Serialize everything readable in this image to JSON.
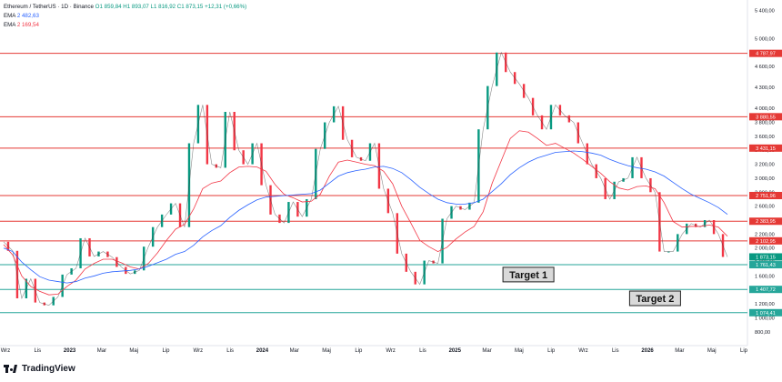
{
  "legend": {
    "symbol": "Ethereum / TetherUS · 1D · Binance",
    "ohlc": "O1 859,84  H1 893,07  L1 816,92  C1 873,15  +12,31 (+0,66%)",
    "ema1_label": "EMA",
    "ema1_value": "2 482,63",
    "ema2_label": "EMA",
    "ema2_value": "2 169,54"
  },
  "brand": {
    "name": "TradingView"
  },
  "colors": {
    "up": "#089981",
    "down": "#f23645",
    "ema_slow": "#2962ff",
    "ema_fast": "#f23645",
    "resistance": "#e53935",
    "support": "#26a69a"
  },
  "chart_data": {
    "type": "line",
    "series": [
      {
        "values": [
          2090,
          1960,
          1280,
          1560,
          1220,
          1180,
          1300,
          1620,
          1710,
          2140,
          1880,
          1950,
          1870,
          1730,
          1630,
          1680,
          2020,
          2300,
          2480,
          2640,
          2300,
          3500,
          4050,
          3200,
          3150,
          3950,
          3400,
          3200,
          3500,
          2900,
          2480,
          2360,
          2660,
          2450,
          2700,
          3420,
          3800,
          4030,
          3550,
          3300,
          3250,
          3500,
          2850,
          2500,
          1920,
          1660,
          1480,
          1820,
          1780,
          2420,
          2600,
          2550,
          2650,
          3700,
          4320,
          4800,
          4520,
          4350,
          4150,
          3900,
          3700,
          4050,
          3900,
          3800,
          3500,
          3200,
          3000,
          2700,
          2950,
          3000,
          3300,
          3000,
          2800,
          1950,
          1950,
          2200,
          2350,
          2300,
          2400,
          2200,
          1873
        ]
      },
      {
        "values": [
          2050,
          1900,
          1600,
          1450,
          1380,
          1330,
          1340,
          1450,
          1540,
          1700,
          1780,
          1840,
          1840,
          1790,
          1730,
          1700,
          1780,
          1930,
          2110,
          2270,
          2340,
          2560,
          2850,
          2930,
          2960,
          3080,
          3160,
          3170,
          3160,
          3100,
          2910,
          2770,
          2720,
          2660,
          2670,
          2770,
          3030,
          3230,
          3260,
          3230,
          3200,
          3180,
          3100,
          2920,
          2600,
          2360,
          2110,
          2020,
          1950,
          2010,
          2130,
          2230,
          2310,
          2520,
          2930,
          3250,
          3570,
          3680,
          3660,
          3570,
          3470,
          3500,
          3430,
          3360,
          3270,
          3170,
          3070,
          2950,
          2860,
          2830,
          2880,
          2890,
          2850,
          2650,
          2380,
          2300,
          2310,
          2310,
          2330,
          2300,
          2170
        ]
      },
      {
        "values": [
          2000,
          1950,
          1800,
          1690,
          1590,
          1540,
          1520,
          1500,
          1520,
          1570,
          1600,
          1640,
          1660,
          1670,
          1680,
          1700,
          1740,
          1790,
          1840,
          1910,
          1950,
          2040,
          2160,
          2250,
          2320,
          2440,
          2540,
          2620,
          2690,
          2730,
          2740,
          2750,
          2760,
          2770,
          2780,
          2830,
          2930,
          3030,
          3080,
          3110,
          3130,
          3160,
          3170,
          3140,
          3080,
          2980,
          2870,
          2780,
          2700,
          2650,
          2630,
          2630,
          2650,
          2700,
          2810,
          2920,
          3050,
          3150,
          3230,
          3290,
          3330,
          3370,
          3380,
          3390,
          3380,
          3360,
          3330,
          3270,
          3220,
          3180,
          3150,
          3130,
          3090,
          3030,
          2940,
          2850,
          2770,
          2710,
          2650,
          2580,
          2482
        ]
      }
    ],
    "y_ticks": [
      "5 400,00",
      "5 000,00",
      "4 600,00",
      "4 300,00",
      "4 000,00",
      "3 800,00",
      "3 600,00",
      "3 400,00",
      "3 200,00",
      "3 000,00",
      "2 800,00",
      "2 600,00",
      "2 400,00",
      "2 200,00",
      "2 000,00",
      "1 800,00",
      "1 600,00",
      "1 400,00",
      "1 200,00",
      "1 000,00",
      "800,00"
    ],
    "x_ticks": [
      "Wrz",
      "Lis",
      "2023",
      "Mar",
      "Maj",
      "Lip",
      "Wrz",
      "Lis",
      "2024",
      "Mar",
      "Maj",
      "Lip",
      "Wrz",
      "Lis",
      "2025",
      "Mar",
      "Maj",
      "Lip",
      "Wrz",
      "Lis",
      "2026",
      "Mar",
      "Maj",
      "Lip"
    ],
    "levels": [
      {
        "value": 4787.97,
        "label": "4 787,97",
        "kind": "resistance"
      },
      {
        "value": 3880.55,
        "label": "3 880,55",
        "kind": "resistance"
      },
      {
        "value": 3431.15,
        "label": "3 431,15",
        "kind": "resistance"
      },
      {
        "value": 2751.96,
        "label": "2 751,96",
        "kind": "resistance"
      },
      {
        "value": 2383.95,
        "label": "2 383,95",
        "kind": "resistance"
      },
      {
        "value": 2102.95,
        "label": "2 102,95",
        "kind": "resistance"
      },
      {
        "value": 1761.43,
        "label": "1 761,43",
        "kind": "support"
      },
      {
        "value": 1407.72,
        "label": "1 407,72",
        "kind": "support"
      },
      {
        "value": 1074.41,
        "label": "1 074,41",
        "kind": "support"
      }
    ],
    "last_price": {
      "value": 1873.15,
      "label": "1 873,15"
    },
    "annotations": [
      {
        "text": "Target 1",
        "x_index": 58,
        "y": 1620
      },
      {
        "text": "Target 2",
        "x_index": 72,
        "y": 1280
      }
    ],
    "ylim": [
      720,
      5500
    ],
    "grid": false
  }
}
